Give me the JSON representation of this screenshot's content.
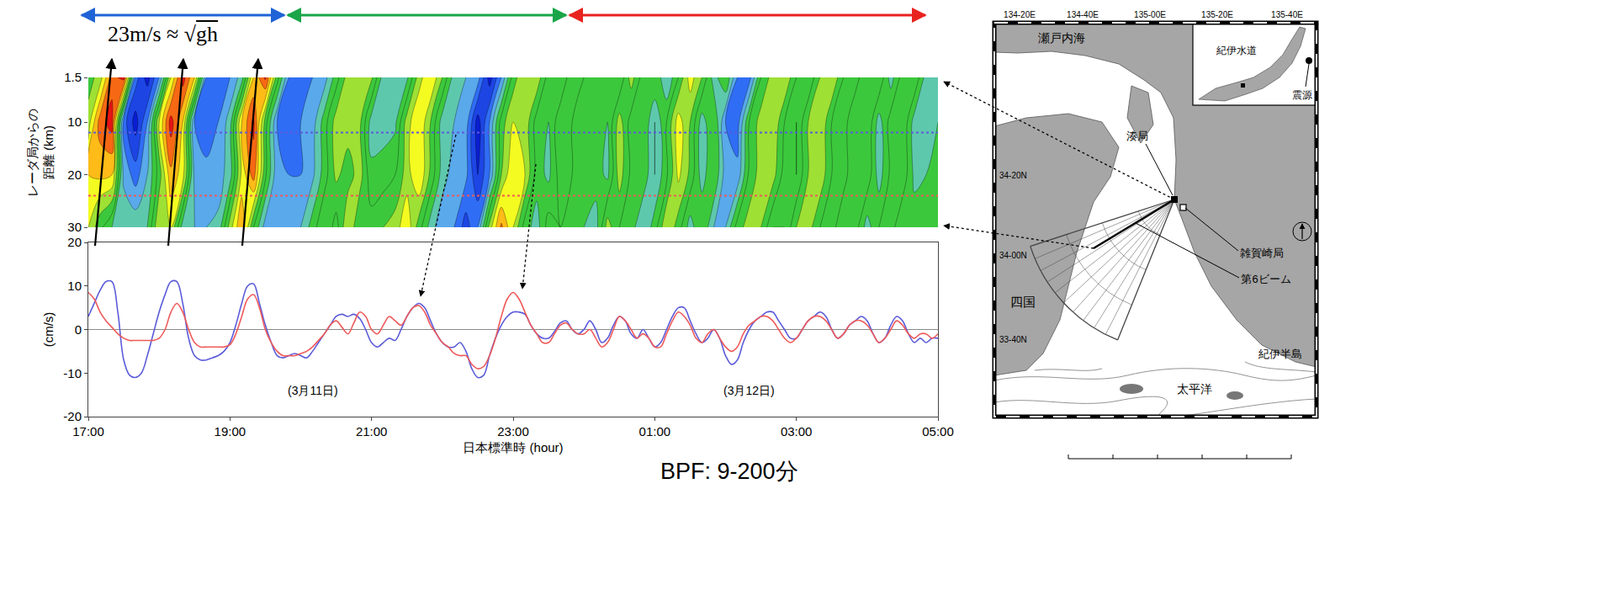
{
  "header": {
    "text": "23m/s ≈ √gh"
  },
  "chart_data": [
    {
      "type": "contour",
      "ylabel": [
        "レーダ局からの",
        "距離 (km)"
      ],
      "x": [
        0,
        10,
        20,
        30,
        40,
        50,
        60,
        70,
        80,
        90,
        100,
        110,
        120,
        130,
        140,
        150,
        160,
        170,
        180,
        190,
        200,
        210,
        220,
        230,
        240,
        250,
        260,
        270,
        280,
        290,
        300,
        310,
        320,
        330,
        340,
        350,
        360,
        370,
        380,
        390,
        400,
        410,
        420,
        430,
        440,
        450,
        460,
        470,
        480,
        490,
        500,
        510,
        520,
        530,
        540,
        550,
        560,
        570,
        580,
        590,
        600,
        610,
        620,
        630,
        640,
        650,
        660,
        670,
        680,
        690,
        700,
        710,
        720
      ],
      "y": [
        1.5,
        10,
        20,
        30
      ],
      "z": [
        [
          1,
          3,
          9,
          11,
          -7,
          -11,
          -6,
          4,
          11,
          6,
          -6,
          -7,
          -6,
          -3,
          6,
          10.5,
          1,
          -6,
          -6,
          -6,
          -5,
          -1,
          3,
          3,
          2.5,
          -3,
          -3,
          -2.5,
          3,
          6,
          2,
          -3,
          -4,
          -5,
          -11,
          -6,
          1,
          4,
          3.5,
          -1,
          -2,
          1.5,
          0,
          0,
          0,
          -2,
          3,
          -1,
          0,
          -4,
          0,
          5,
          2,
          -3,
          0,
          -6,
          -7,
          0,
          3,
          4,
          0,
          -2,
          2,
          4,
          0,
          -1,
          2,
          2,
          -3,
          1,
          2,
          -3,
          -3
        ],
        [
          3,
          9,
          11,
          -7,
          -11,
          -6,
          4,
          11,
          6,
          -6,
          -7,
          -6,
          -3,
          6,
          10.5,
          1,
          -6,
          -6,
          -6,
          -5,
          -1,
          3,
          3,
          2.5,
          -3,
          -3,
          -2.5,
          3,
          6,
          2,
          -3,
          -4,
          -5,
          -11,
          -6,
          1,
          4,
          3.5,
          -1,
          -2,
          1.5,
          0,
          0,
          0,
          -2,
          3,
          -1,
          0,
          -4,
          0,
          5,
          2,
          -3,
          0,
          -6,
          -7,
          0,
          3,
          4,
          0,
          -2,
          2,
          4,
          0,
          -1,
          2,
          2,
          -3,
          1,
          2,
          -3,
          -3,
          -2
        ],
        [
          6,
          6.5,
          6,
          -4.5,
          -7,
          -4,
          1,
          7.5,
          5,
          -4.5,
          -5.5,
          -5,
          -3,
          4.5,
          9,
          0.5,
          -5.5,
          -6,
          -6,
          -4.5,
          -1,
          2.5,
          1,
          3,
          -1.5,
          -1,
          0,
          3,
          6,
          1.5,
          -3,
          -5,
          -5.5,
          -10,
          -6,
          2,
          6,
          4,
          -1,
          -2.5,
          1,
          0,
          -0.5,
          -1,
          -2.5,
          3,
          -0.5,
          -0.5,
          -4,
          -0.5,
          4.5,
          1.5,
          -3,
          0,
          -5,
          -5.5,
          0.5,
          3,
          3,
          -1,
          -2,
          2,
          3.5,
          0,
          -1,
          2,
          1.5,
          -3,
          0.5,
          1.5,
          -2.5,
          -2,
          -1.5
        ],
        [
          4,
          0.5,
          -2,
          -2.5,
          -2.5,
          -2,
          4,
          4,
          -3,
          -4,
          -4,
          -3.5,
          3,
          8,
          0,
          -5,
          -6,
          -5.5,
          -4,
          -1,
          2,
          -1,
          4,
          0,
          1,
          2,
          3,
          5.5,
          1,
          -3,
          -5.5,
          -6,
          -9,
          -6,
          3,
          8.5,
          4,
          -1,
          -3,
          1,
          0,
          -1,
          -2,
          -3,
          3,
          0,
          -1,
          -4,
          -1,
          4,
          1,
          -3,
          0,
          -4,
          -4,
          1,
          3,
          2,
          -2,
          -2,
          2,
          3,
          0,
          -1,
          2,
          1,
          -3,
          0,
          1,
          -2,
          -1,
          -1,
          -1
        ]
      ],
      "zlim": [
        -12,
        12
      ],
      "xlim": [
        0,
        720
      ],
      "ylim": [
        30,
        1.5
      ],
      "yticks": [
        1.5,
        10,
        20,
        30
      ],
      "tick_labels": "y"
    },
    {
      "type": "line",
      "xlabel": "日本標準時 (hour)",
      "ylabel": "(cm/s)",
      "x": [
        0,
        5,
        10,
        15,
        20,
        25,
        30,
        35,
        40,
        45,
        50,
        55,
        60,
        65,
        70,
        75,
        80,
        85,
        90,
        95,
        100,
        105,
        110,
        115,
        120,
        125,
        130,
        135,
        140,
        145,
        150,
        155,
        160,
        165,
        170,
        175,
        180,
        185,
        190,
        195,
        200,
        205,
        210,
        215,
        220,
        225,
        230,
        235,
        240,
        245,
        250,
        255,
        260,
        265,
        270,
        275,
        280,
        285,
        290,
        295,
        300,
        305,
        310,
        315,
        320,
        325,
        330,
        335,
        340,
        345,
        350,
        355,
        360,
        365,
        370,
        375,
        380,
        385,
        390,
        395,
        400,
        405,
        410,
        415,
        420,
        425,
        430,
        435,
        440,
        445,
        450,
        455,
        460,
        465,
        470,
        475,
        480,
        485,
        490,
        495,
        500,
        505,
        510,
        515,
        520,
        525,
        530,
        535,
        540,
        545,
        550,
        555,
        560,
        565,
        570,
        575,
        580,
        585,
        590,
        595,
        600,
        605,
        610,
        615,
        620,
        625,
        630,
        635,
        640,
        645,
        650,
        655,
        660,
        665,
        670,
        675,
        680,
        685,
        690,
        695,
        700,
        705,
        710,
        715,
        720
      ],
      "series": [
        {
          "color": "#5b5bd9",
          "distance_km": 12,
          "values": [
            3,
            6,
            9,
            11,
            11,
            4,
            -7,
            -10.5,
            -11,
            -10,
            -6,
            -1,
            4,
            8,
            11,
            11,
            6,
            -2,
            -6,
            -7,
            -7,
            -6.5,
            -6,
            -5,
            -3,
            1,
            6,
            10,
            10.5,
            6,
            1,
            -3,
            -6,
            -6.5,
            -6,
            -5.5,
            -6,
            -6.5,
            -5,
            -3,
            -1,
            1,
            3,
            3.5,
            3,
            3.5,
            2.5,
            0,
            -3,
            -4,
            -3,
            -2,
            -2.5,
            0,
            3,
            5,
            6,
            5,
            2,
            -1,
            -3,
            -4,
            -4,
            -3,
            -5,
            -9,
            -11,
            -10.5,
            -6,
            -2,
            1,
            3,
            4,
            4,
            3.5,
            1,
            -1,
            -2,
            -2,
            -0.5,
            1.5,
            2,
            0,
            -1,
            0,
            2,
            0,
            -3,
            -2,
            1,
            3,
            2,
            -1,
            -2,
            0,
            -2,
            -4,
            -3,
            0,
            3,
            5,
            5,
            2,
            -1,
            -3,
            -2,
            0,
            -2,
            -6,
            -8,
            -7,
            -3,
            0,
            2,
            3,
            4,
            4,
            2,
            0,
            -2,
            -2,
            0,
            2,
            3,
            4,
            3,
            0,
            -2,
            -1,
            1,
            2,
            3,
            2,
            -1,
            -3,
            -2,
            1,
            3,
            2,
            -1,
            -3,
            -2,
            -3,
            -2,
            -2
          ]
        },
        {
          "color": "#ef5a5a",
          "distance_km": 24,
          "values": [
            8.5,
            7,
            4,
            2,
            0.5,
            -1,
            -2,
            -2.5,
            -2.5,
            -2.5,
            -2.5,
            -2.5,
            -2,
            0,
            4,
            6,
            4,
            0,
            -3,
            -4,
            -4,
            -4,
            -4,
            -4,
            -3.5,
            -1,
            3,
            7,
            8,
            5,
            0,
            -3,
            -5,
            -6,
            -6,
            -6,
            -5.5,
            -5,
            -4,
            -2.5,
            -1,
            1,
            2,
            0.5,
            -1,
            1.5,
            4,
            3,
            0,
            -1,
            1,
            3,
            2,
            1,
            3,
            5,
            5.5,
            4,
            1,
            -1,
            -3,
            -4,
            -5.5,
            -6,
            -6,
            -8,
            -9,
            -8.5,
            -6,
            -2,
            3,
            7,
            8.5,
            7,
            4,
            1,
            -1,
            -3,
            -3,
            -1,
            1,
            1.5,
            0,
            -1,
            -1,
            0,
            -2,
            -4,
            -3,
            0,
            3,
            2,
            0,
            -2,
            -1,
            -2,
            -4,
            -4,
            -1,
            2,
            4,
            3,
            1,
            -2,
            -3,
            -1,
            0,
            -2,
            -4,
            -5,
            -4,
            -1,
            1,
            2,
            3,
            3,
            2,
            0,
            -2,
            -3,
            -2,
            0,
            2,
            3,
            3,
            2,
            0,
            -2,
            -1,
            1,
            2,
            2,
            1,
            -1,
            -3,
            -2,
            0,
            2,
            1,
            -1,
            -2,
            -1,
            -1,
            -2,
            -1
          ]
        }
      ],
      "xlim": [
        0,
        720
      ],
      "ylim": [
        -20,
        20
      ],
      "xticks": [
        {
          "value": 0,
          "label": "17:00"
        },
        {
          "value": 120,
          "label": "19:00"
        },
        {
          "value": 240,
          "label": "21:00"
        },
        {
          "value": 360,
          "label": "23:00"
        },
        {
          "value": 480,
          "label": "01:00"
        },
        {
          "value": 600,
          "label": "03:00"
        },
        {
          "value": 720,
          "label": "05:00"
        }
      ],
      "yticks": [
        20,
        10,
        0,
        -10,
        -20
      ],
      "annotations": [
        {
          "text": "(3月11日)",
          "x": 190,
          "y": -14
        },
        {
          "text": "(3月12日)",
          "x": 560,
          "y": -14
        }
      ]
    }
  ],
  "footer": {
    "text": "BPF: 9-200分"
  },
  "map": {
    "lon_labels": [
      "134-20E",
      "134-40E",
      "135-00E",
      "135-20E",
      "135-40E"
    ],
    "lat_labels": [
      "34-20N",
      "34-00N",
      "33-40N"
    ],
    "places": [
      "瀬戸内海",
      "湊局",
      "紀伊水道",
      "震源",
      "四国",
      "雑賀崎局",
      "第6ビーム",
      "紀伊半島",
      "太平洋"
    ]
  }
}
